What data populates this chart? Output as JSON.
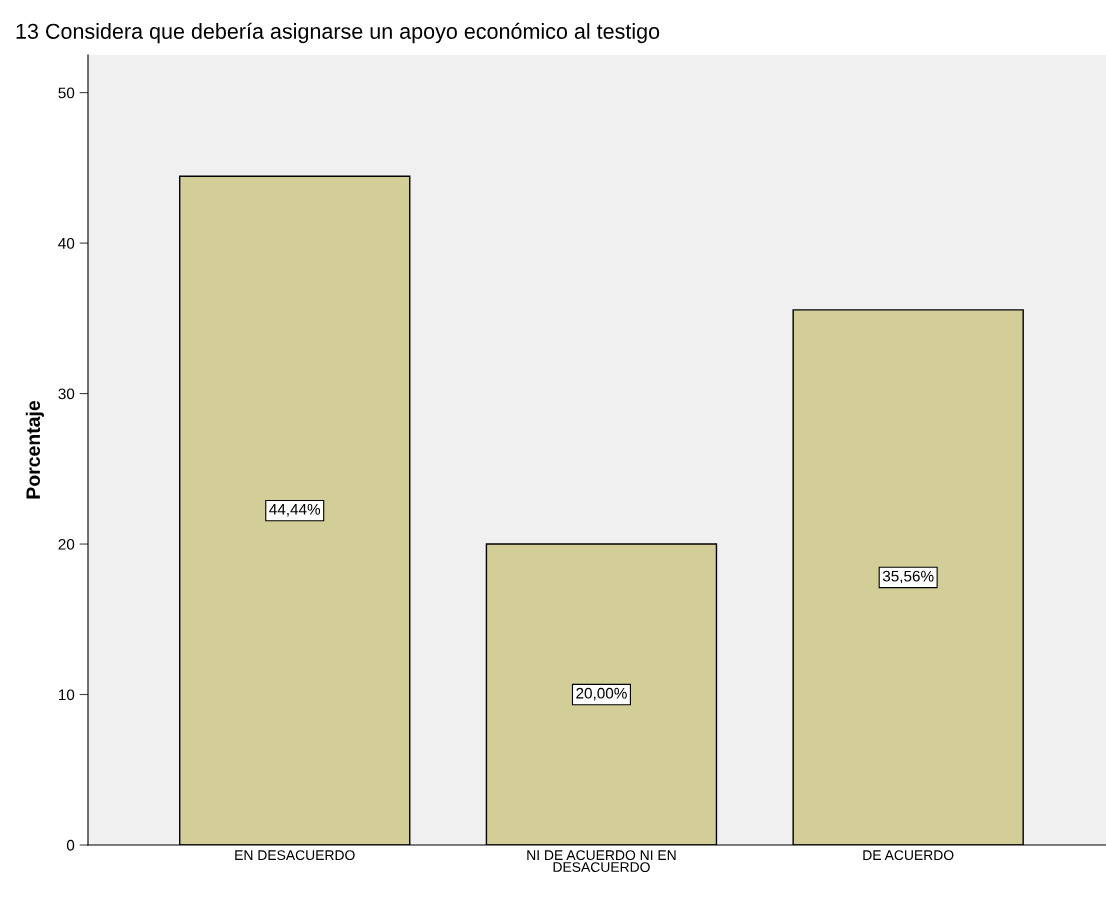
{
  "chart_data": {
    "type": "bar",
    "title": "13 Considera que debería asignarse un apoyo económico al testigo",
    "ylabel": "Porcentaje",
    "categories": [
      "EN DESACUERDO",
      "NI DE ACUERDO NI EN\nDESACUERDO",
      "DE ACUERDO"
    ],
    "values": [
      44.44,
      20.0,
      35.56
    ],
    "value_labels": [
      "44,44%",
      "20,00%",
      "35,56%"
    ],
    "color": "#d3ce98",
    "ylim": [
      0,
      52.5
    ],
    "yticks": [
      0,
      10,
      20,
      30,
      40,
      50
    ],
    "grid": false,
    "legend": false
  }
}
